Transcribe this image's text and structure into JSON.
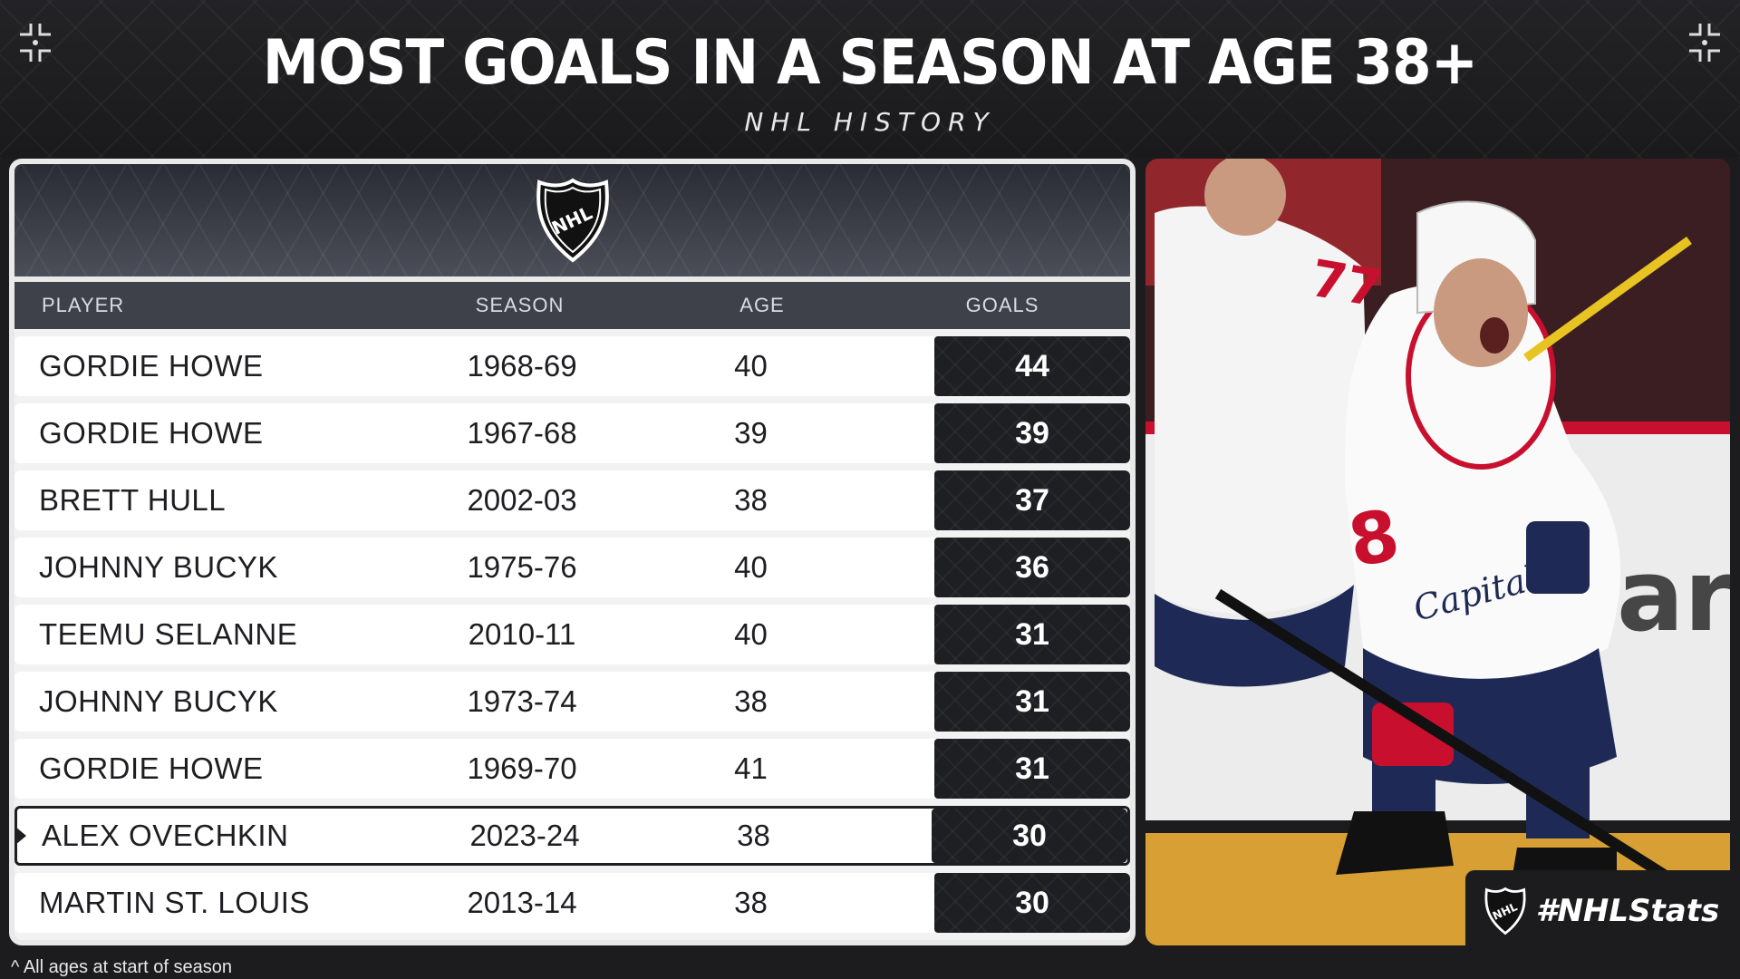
{
  "header": {
    "title": "MOST GOALS IN A SEASON AT AGE 38+",
    "subtitle": "NHL HISTORY"
  },
  "table": {
    "logo_text": "NHL",
    "columns": {
      "player": "PLAYER",
      "season": "SEASON",
      "age": "AGE",
      "goals": "GOALS"
    },
    "rows": [
      {
        "player": "GORDIE HOWE",
        "season": "1968-69",
        "age": "40",
        "goals": "44"
      },
      {
        "player": "GORDIE HOWE",
        "season": "1967-68",
        "age": "39",
        "goals": "39"
      },
      {
        "player": "BRETT HULL",
        "season": "2002-03",
        "age": "38",
        "goals": "37"
      },
      {
        "player": "JOHNNY BUCYK",
        "season": "1975-76",
        "age": "40",
        "goals": "36"
      },
      {
        "player": "TEEMU SELANNE",
        "season": "2010-11",
        "age": "40",
        "goals": "31"
      },
      {
        "player": "JOHNNY BUCYK",
        "season": "1973-74",
        "age": "38",
        "goals": "31"
      },
      {
        "player": "GORDIE HOWE",
        "season": "1969-70",
        "age": "41",
        "goals": "31"
      },
      {
        "player": "ALEX OVECHKIN",
        "season": "2023-24",
        "age": "38",
        "goals": "30"
      },
      {
        "player": "MARTIN ST. LOUIS",
        "season": "2013-14",
        "age": "38",
        "goals": "30"
      }
    ]
  },
  "photo": {
    "jersey_number": "8",
    "team_wordmark": "Capitals"
  },
  "brand": {
    "logo_text": "NHL",
    "hashtag": "#NHLStats"
  },
  "footnote": "^ All ages at start of season",
  "colors": {
    "background": "#1c1c1e",
    "goals_cell": "#1e1f23",
    "header_band": "#3f414a",
    "accent_red": "#c8102e"
  }
}
